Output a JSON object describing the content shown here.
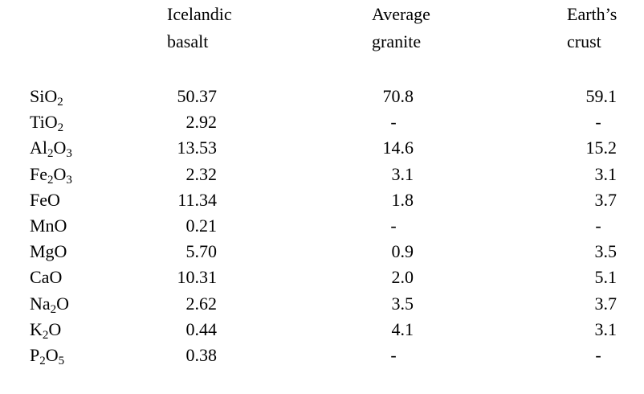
{
  "table": {
    "columns": [
      [
        "Icelandic",
        "basalt"
      ],
      [
        "Average",
        "granite"
      ],
      [
        "Earth’s",
        "crust"
      ]
    ],
    "rows": [
      [
        "SiO2",
        "50.37",
        "70.8",
        "59.1"
      ],
      [
        "TiO2",
        "2.92",
        "-",
        "-"
      ],
      [
        "Al2O3",
        "13.53",
        "14.6",
        "15.2"
      ],
      [
        "Fe2O3",
        "2.32",
        "3.1",
        "3.1"
      ],
      [
        "FeO",
        "11.34",
        "1.8",
        "3.7"
      ],
      [
        "MnO",
        "0.21",
        "-",
        "-"
      ],
      [
        "MgO",
        "5.70",
        "0.9",
        "3.5"
      ],
      [
        "CaO",
        "10.31",
        "2.0",
        "5.1"
      ],
      [
        "Na2O",
        "2.62",
        "3.5",
        "3.7"
      ],
      [
        "K2O",
        "0.44",
        "4.1",
        "3.1"
      ],
      [
        "P2O5",
        "0.38",
        "-",
        "-"
      ]
    ]
  }
}
